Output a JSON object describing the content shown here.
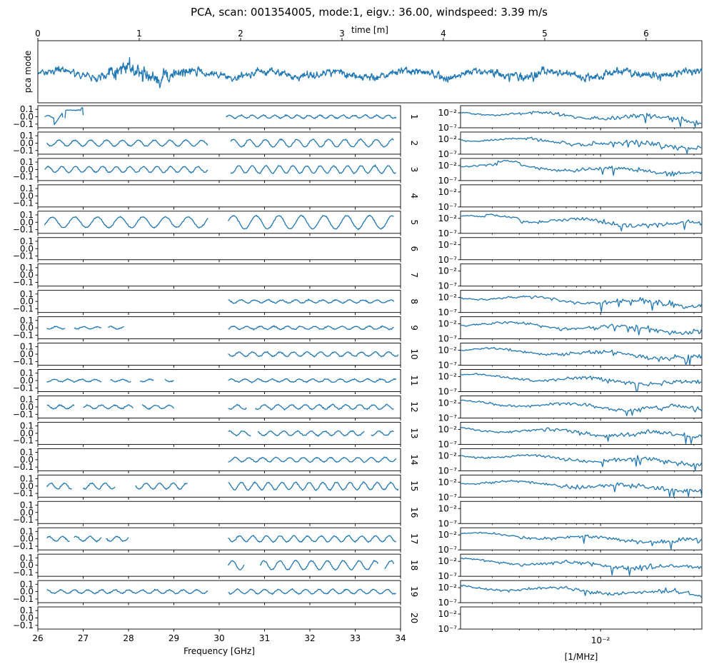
{
  "chart_data": {
    "title": "PCA, scan: 001354005, mode:1, eigv.: 36.00, windspeed: 3.39 m/s",
    "line_color": "#1f77b4",
    "top_panel": {
      "type": "line",
      "xlabel": "time [m]",
      "ylabel": "pca mode",
      "xlim": [
        0,
        6.55
      ],
      "xticks": [
        "0",
        "1",
        "2",
        "3",
        "4",
        "5",
        "6"
      ],
      "series_description": "noisy time series with larger bursts near 0.9-1.2 min and around 4.5-5 min",
      "seed": 7
    },
    "left_panels": {
      "type": "line",
      "xlabel": "Frequency [GHz]",
      "xlim": [
        26,
        34
      ],
      "xticks": [
        "26",
        "27",
        "28",
        "29",
        "30",
        "31",
        "32",
        "33",
        "34"
      ],
      "ylim": [
        -0.15,
        0.15
      ],
      "yticks": [
        "0.1",
        "0.0",
        "−0.1"
      ],
      "gap_ghz": [
        29.8,
        30.2
      ],
      "rows": [
        {
          "label": "1",
          "empty": false,
          "amp": 0.02,
          "period": 0.25,
          "segments": [
            [
              26.15,
              26.35
            ],
            [
              26.35,
              26.55
            ],
            [
              26.6,
              27.0
            ],
            [
              30.15,
              33.9
            ]
          ],
          "drop": true
        },
        {
          "label": "2",
          "empty": false,
          "amp": 0.05,
          "period": 0.35,
          "segments": [
            [
              26.2,
              29.75
            ],
            [
              30.25,
              33.85
            ]
          ]
        },
        {
          "label": "3",
          "empty": false,
          "amp": 0.05,
          "period": 0.3,
          "segments": [
            [
              26.15,
              29.75
            ],
            [
              30.25,
              33.9
            ]
          ]
        },
        {
          "label": "4",
          "empty": true
        },
        {
          "label": "5",
          "empty": false,
          "amp": 0.09,
          "period": 0.5,
          "segments": [
            [
              26.15,
              29.75
            ],
            [
              30.2,
              33.85
            ]
          ]
        },
        {
          "label": "6",
          "empty": true
        },
        {
          "label": "7",
          "empty": true
        },
        {
          "label": "8",
          "empty": false,
          "amp": 0.02,
          "period": 0.3,
          "segments": [
            [
              30.2,
              33.85
            ]
          ]
        },
        {
          "label": "9",
          "empty": false,
          "amp": 0.02,
          "period": 0.3,
          "segments": [
            [
              26.2,
              26.6
            ],
            [
              26.8,
              27.4
            ],
            [
              27.55,
              27.9
            ],
            [
              30.2,
              33.85
            ]
          ]
        },
        {
          "label": "10",
          "empty": false,
          "amp": 0.03,
          "period": 0.3,
          "segments": [
            [
              30.2,
              33.95
            ]
          ]
        },
        {
          "label": "11",
          "empty": false,
          "amp": 0.02,
          "period": 0.3,
          "segments": [
            [
              26.2,
              27.4
            ],
            [
              27.6,
              28.05
            ],
            [
              28.25,
              28.55
            ],
            [
              28.8,
              29.0
            ],
            [
              30.2,
              33.9
            ]
          ]
        },
        {
          "label": "12",
          "empty": false,
          "amp": 0.03,
          "period": 0.3,
          "segments": [
            [
              26.2,
              26.8
            ],
            [
              27.0,
              28.1
            ],
            [
              28.3,
              29.0
            ],
            [
              30.2,
              30.6
            ],
            [
              30.8,
              33.85
            ]
          ]
        },
        {
          "label": "13",
          "empty": false,
          "amp": 0.03,
          "period": 0.3,
          "segments": [
            [
              30.2,
              30.7
            ],
            [
              30.85,
              33.2
            ],
            [
              33.35,
              33.85
            ]
          ]
        },
        {
          "label": "14",
          "empty": false,
          "amp": 0.03,
          "period": 0.3,
          "segments": [
            [
              30.2,
              33.9
            ]
          ]
        },
        {
          "label": "15",
          "empty": false,
          "amp": 0.05,
          "period": 0.3,
          "segments": [
            [
              26.2,
              26.75
            ],
            [
              27.0,
              27.7
            ],
            [
              28.15,
              29.3
            ],
            [
              30.2,
              33.95
            ]
          ]
        },
        {
          "label": "16",
          "empty": true
        },
        {
          "label": "17",
          "empty": false,
          "amp": 0.04,
          "period": 0.3,
          "segments": [
            [
              26.2,
              26.7
            ],
            [
              26.8,
              27.4
            ],
            [
              27.5,
              28.0
            ],
            [
              30.2,
              33.9
            ]
          ]
        },
        {
          "label": "18",
          "empty": false,
          "amp": 0.06,
          "period": 0.35,
          "segments": [
            [
              30.2,
              30.55
            ],
            [
              30.9,
              33.5
            ],
            [
              33.65,
              33.85
            ]
          ]
        },
        {
          "label": "19",
          "empty": false,
          "amp": 0.03,
          "period": 0.3,
          "segments": [
            [
              26.2,
              29.75
            ],
            [
              30.2,
              33.9
            ]
          ]
        },
        {
          "label": "20",
          "empty": true
        }
      ]
    },
    "right_panels": {
      "type": "line",
      "xscale": "log",
      "xlabel": "[1/MHz]",
      "xlim": [
        0.00125,
        0.045
      ],
      "xtick_value": 0.01,
      "xtick_label": "10⁻²",
      "yscale": "log",
      "ylim": [
        1e-07,
        1
      ],
      "yticks": [
        "10⁻²",
        "10⁻⁷"
      ],
      "series_description": "spectra: roughly flat near 1e-2 at low frequency, falling slowly with dips at high frequency; empty for rows 4, 6, 7, 16, 20"
    }
  }
}
